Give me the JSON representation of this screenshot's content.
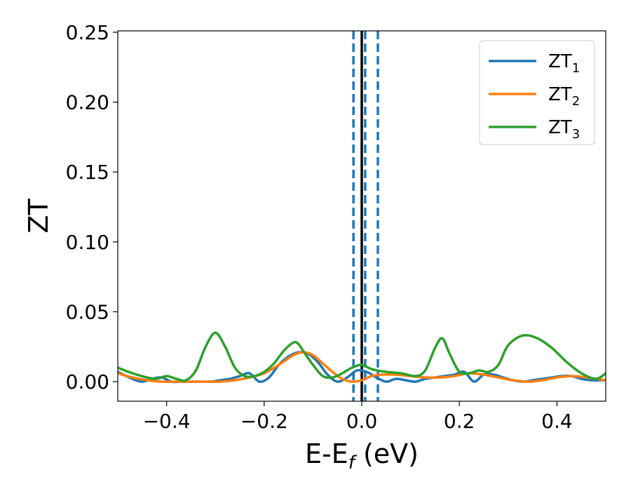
{
  "chart_data": {
    "type": "line",
    "title": "",
    "xlabel_main": "E-E",
    "xlabel_sub": "f",
    "xlabel_unit": " (eV)",
    "ylabel": "ZT",
    "xlim": [
      -0.5,
      0.5
    ],
    "ylim": [
      -0.014,
      0.251
    ],
    "xticks": [
      -0.4,
      -0.2,
      0.0,
      0.2,
      0.4
    ],
    "xtick_labels": [
      "−0.4",
      "−0.2",
      "0.0",
      "0.2",
      "0.4"
    ],
    "yticks": [
      0.0,
      0.05,
      0.1,
      0.15,
      0.2,
      0.25
    ],
    "ytick_labels": [
      "0.00",
      "0.05",
      "0.10",
      "0.15",
      "0.20",
      "0.25"
    ],
    "grid": false,
    "legend_position": "top-right",
    "vertical_lines": [
      {
        "x": 0.0,
        "style": "solid",
        "color": "#000000"
      },
      {
        "x": -0.017,
        "style": "dashed",
        "color": "#1f77b4"
      },
      {
        "x": 0.007,
        "style": "dashed",
        "color": "#1f77b4"
      },
      {
        "x": 0.033,
        "style": "dashed",
        "color": "#1f77b4"
      }
    ],
    "series": [
      {
        "name": "ZT",
        "name_sub": "1",
        "color": "#1f77b4",
        "x": [
          -0.5,
          -0.47,
          -0.45,
          -0.43,
          -0.41,
          -0.39,
          -0.37,
          -0.35,
          -0.33,
          -0.31,
          -0.29,
          -0.27,
          -0.25,
          -0.23,
          -0.21,
          -0.19,
          -0.17,
          -0.15,
          -0.13,
          -0.11,
          -0.09,
          -0.07,
          -0.05,
          -0.03,
          -0.01,
          0.01,
          0.03,
          0.05,
          0.07,
          0.09,
          0.11,
          0.13,
          0.15,
          0.17,
          0.19,
          0.21,
          0.23,
          0.25,
          0.27,
          0.29,
          0.31,
          0.33,
          0.35,
          0.37,
          0.39,
          0.41,
          0.43,
          0.45,
          0.47,
          0.5
        ],
        "y": [
          0.007,
          0.002,
          0.0,
          0.002,
          0.003,
          0.0,
          0.0,
          0.0,
          0.0,
          0.0,
          0.001,
          0.002,
          0.004,
          0.006,
          0.0,
          0.003,
          0.012,
          0.018,
          0.021,
          0.02,
          0.014,
          0.005,
          0.0,
          0.003,
          0.008,
          0.007,
          0.003,
          0.0,
          0.002,
          0.001,
          0.0,
          0.002,
          0.003,
          0.004,
          0.005,
          0.007,
          0.0,
          0.005,
          0.005,
          0.003,
          0.001,
          0.0,
          0.001,
          0.002,
          0.003,
          0.004,
          0.004,
          0.002,
          0.001,
          0.001
        ]
      },
      {
        "name": "ZT",
        "name_sub": "2",
        "color": "#ff7f0e",
        "x": [
          -0.5,
          -0.47,
          -0.44,
          -0.41,
          -0.38,
          -0.35,
          -0.32,
          -0.29,
          -0.26,
          -0.23,
          -0.2,
          -0.17,
          -0.14,
          -0.12,
          -0.1,
          -0.08,
          -0.06,
          -0.04,
          -0.02,
          0.0,
          0.02,
          0.04,
          0.07,
          0.1,
          0.13,
          0.16,
          0.19,
          0.22,
          0.25,
          0.28,
          0.31,
          0.34,
          0.37,
          0.4,
          0.43,
          0.46,
          0.5
        ],
        "y": [
          0.006,
          0.003,
          0.001,
          0.0,
          0.0,
          0.0,
          0.0,
          0.0,
          0.001,
          0.003,
          0.006,
          0.012,
          0.019,
          0.021,
          0.019,
          0.013,
          0.007,
          0.002,
          0.0,
          0.001,
          0.004,
          0.005,
          0.005,
          0.004,
          0.003,
          0.003,
          0.004,
          0.006,
          0.005,
          0.003,
          0.001,
          0.0,
          0.001,
          0.003,
          0.004,
          0.003,
          0.001
        ]
      },
      {
        "name": "ZT",
        "name_sub": "3",
        "color": "#2ca02c",
        "x": [
          -0.5,
          -0.47,
          -0.44,
          -0.42,
          -0.4,
          -0.38,
          -0.36,
          -0.34,
          -0.32,
          -0.3,
          -0.28,
          -0.26,
          -0.24,
          -0.22,
          -0.2,
          -0.18,
          -0.16,
          -0.14,
          -0.13,
          -0.12,
          -0.1,
          -0.08,
          -0.06,
          -0.04,
          -0.02,
          0.0,
          0.02,
          0.05,
          0.08,
          0.11,
          0.13,
          0.15,
          0.165,
          0.18,
          0.2,
          0.22,
          0.24,
          0.26,
          0.28,
          0.3,
          0.33,
          0.36,
          0.39,
          0.42,
          0.45,
          0.48,
          0.5
        ],
        "y": [
          0.01,
          0.006,
          0.003,
          0.002,
          0.004,
          0.002,
          0.001,
          0.008,
          0.025,
          0.035,
          0.025,
          0.01,
          0.004,
          0.004,
          0.007,
          0.013,
          0.022,
          0.028,
          0.027,
          0.022,
          0.012,
          0.004,
          0.003,
          0.006,
          0.01,
          0.012,
          0.009,
          0.007,
          0.006,
          0.004,
          0.008,
          0.024,
          0.031,
          0.02,
          0.007,
          0.006,
          0.008,
          0.007,
          0.012,
          0.026,
          0.033,
          0.031,
          0.024,
          0.014,
          0.006,
          0.002,
          0.006
        ]
      }
    ]
  }
}
